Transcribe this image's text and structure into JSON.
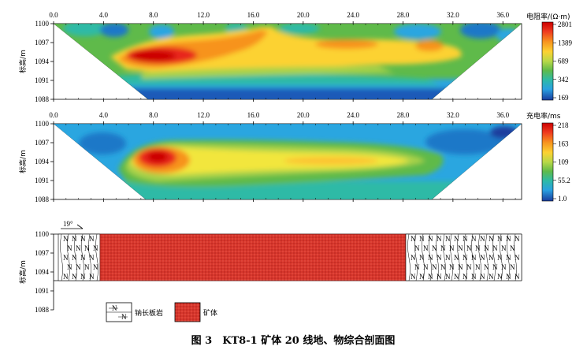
{
  "figure": {
    "caption": "图 3　KT8-1 矿体 20 线地、物综合剖面图"
  },
  "panels": [
    {
      "id": "resistivity",
      "ylabel": "标高/m",
      "x_ticks": [
        "0.0",
        "4.0",
        "8.0",
        "12.0",
        "16.0",
        "20.0",
        "24.0",
        "28.0",
        "32.0",
        "36.0"
      ],
      "y_ticks": [
        "1100",
        "1097",
        "1094",
        "1091",
        "1088"
      ],
      "colorbar_title": "电阻率/(Ω·m)",
      "colorbar_ticks": [
        "2801",
        "1389",
        "689",
        "342",
        "169"
      ],
      "colorbar_colors": [
        "#cc0000",
        "#e8281e",
        "#f25a23",
        "#f7931e",
        "#fcc332",
        "#f2e63c",
        "#a8d24a",
        "#5fba4a",
        "#2eb8a6",
        "#2aa6e0",
        "#1a78c8",
        "#1a3c9e"
      ]
    },
    {
      "id": "chargeability",
      "ylabel": "标高/m",
      "x_ticks": [
        "0.0",
        "4.0",
        "8.0",
        "12.0",
        "16.0",
        "20.0",
        "24.0",
        "28.0",
        "32.0",
        "36.0"
      ],
      "y_ticks": [
        "1100",
        "1097",
        "1094",
        "1091",
        "1088"
      ],
      "colorbar_title": "充电率/ms",
      "colorbar_ticks": [
        "218",
        "163",
        "109",
        "55.2",
        "1.0"
      ],
      "colorbar_colors": [
        "#cc0000",
        "#e8281e",
        "#f25a23",
        "#f7931e",
        "#fcc332",
        "#f2e63c",
        "#a8d24a",
        "#5fba4a",
        "#2eb8a6",
        "#2aa6e0",
        "#1a78c8",
        "#1a3c9e"
      ]
    },
    {
      "id": "geology",
      "ylabel": "标高/m",
      "y_ticks": [
        "1100",
        "1097",
        "1094",
        "1091",
        "1088"
      ],
      "dip_label": "19°",
      "rock_symbol": "N",
      "legend": [
        {
          "label": "钠长板岩",
          "color": "#ffffff"
        },
        {
          "label": "矿体",
          "color": "#d93a2e"
        }
      ]
    }
  ]
}
